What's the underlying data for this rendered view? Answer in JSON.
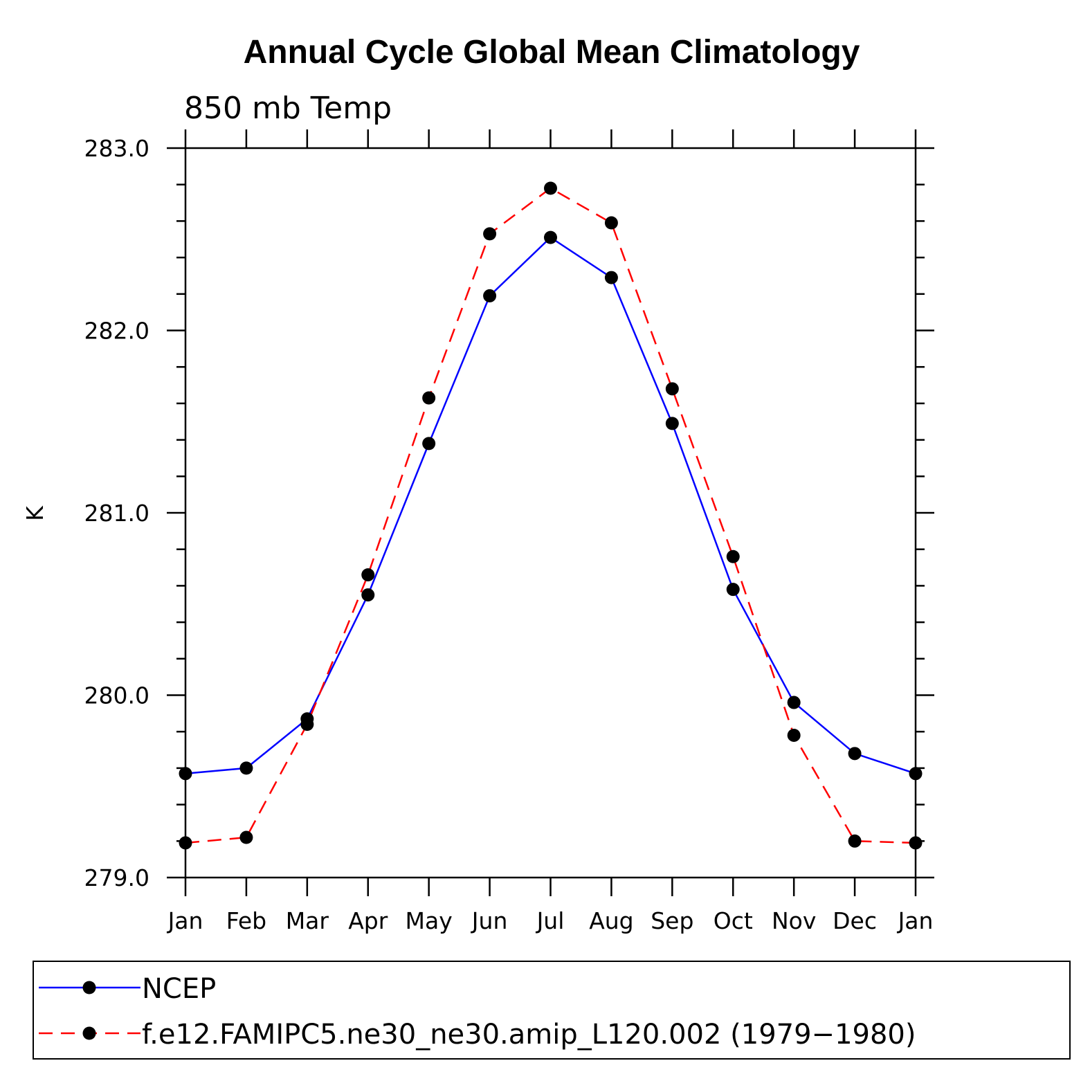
{
  "chart_data": {
    "type": "line",
    "title": "Annual Cycle Global Mean Climatology",
    "subtitle": "850 mb Temp",
    "xlabel": "",
    "ylabel": "K",
    "categories": [
      "Jan",
      "Feb",
      "Mar",
      "Apr",
      "May",
      "Jun",
      "Jul",
      "Aug",
      "Sep",
      "Oct",
      "Nov",
      "Dec",
      "Jan"
    ],
    "ylim": [
      279.0,
      283.0
    ],
    "yticks": [
      "279.0",
      "280.0",
      "281.0",
      "282.0",
      "283.0"
    ],
    "series": [
      {
        "name": "NCEP",
        "color": "#0000ff",
        "dash": "solid",
        "values": [
          279.57,
          279.6,
          279.87,
          280.55,
          281.38,
          282.19,
          282.51,
          282.29,
          281.49,
          280.58,
          279.96,
          279.68,
          279.57
        ]
      },
      {
        "name": "f.e12.FAMIPC5.ne30_ne30.amip_L120.002 (1979−1980)",
        "color": "#ff0000",
        "dash": "dashed",
        "values": [
          279.19,
          279.22,
          279.84,
          280.66,
          281.63,
          282.53,
          282.78,
          282.59,
          281.68,
          280.76,
          279.78,
          279.2,
          279.19
        ]
      }
    ],
    "legend_position": "bottom"
  }
}
